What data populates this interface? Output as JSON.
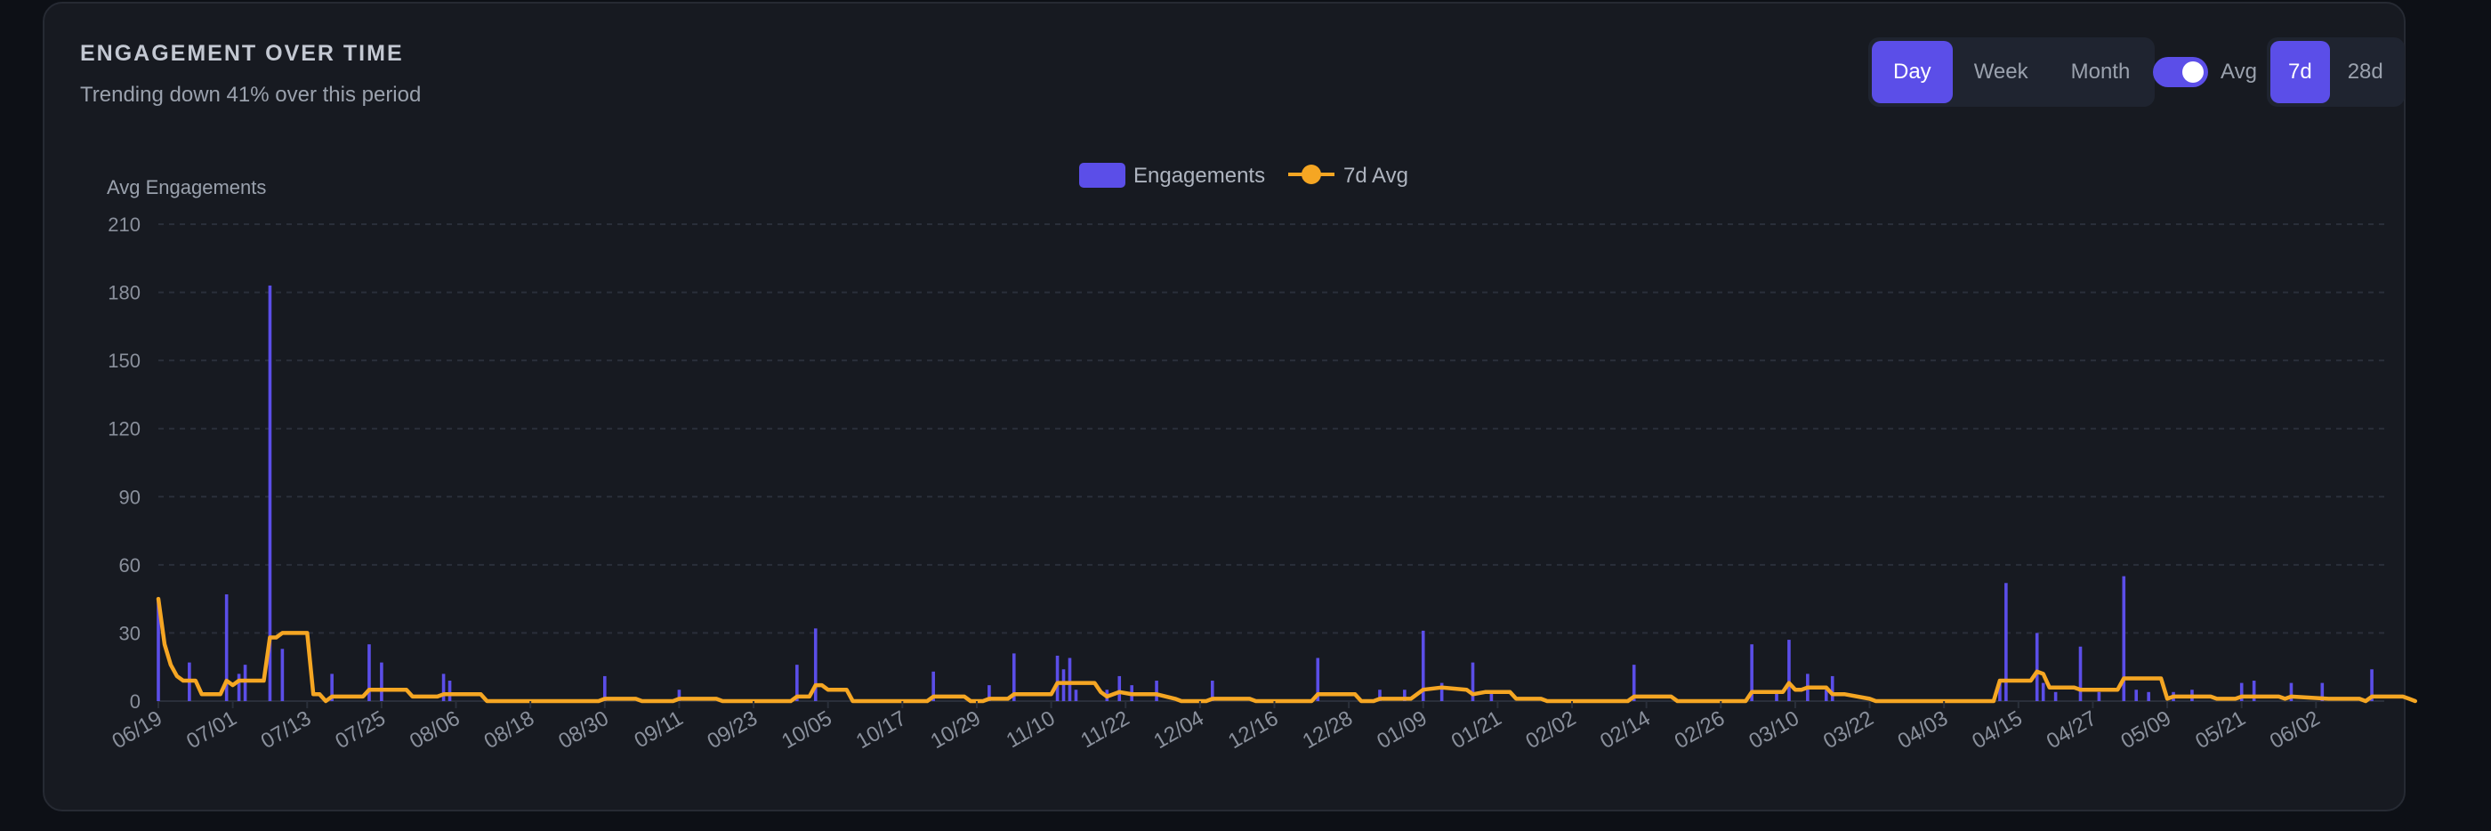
{
  "header": {
    "title": "ENGAGEMENT OVER TIME",
    "subtitle": "Trending down 41% over this period"
  },
  "controls": {
    "granularity": [
      {
        "label": "Day",
        "active": true
      },
      {
        "label": "Week",
        "active": false
      },
      {
        "label": "Month",
        "active": false
      }
    ],
    "avg_toggle_label": "Avg",
    "avg_toggle_on": true,
    "window": [
      {
        "label": "7d",
        "active": true
      },
      {
        "label": "28d",
        "active": false
      }
    ]
  },
  "colors": {
    "bar": "#5b4ee8",
    "line": "#f5a623",
    "grid": "#2a2f3a",
    "tick": "#8a909c",
    "accent": "#5b4ee8"
  },
  "chart_data": {
    "type": "bar",
    "ylabel": "Avg Engagements",
    "ylim": [
      0,
      210
    ],
    "yticks": [
      0,
      30,
      60,
      90,
      120,
      150,
      180,
      210
    ],
    "grid": true,
    "legend_position": "top-center",
    "x_start": "2024-06-19",
    "x_end": "2025-06-13",
    "xticks": [
      "06/19",
      "07/01",
      "07/13",
      "07/25",
      "08/06",
      "08/18",
      "08/30",
      "09/11",
      "09/23",
      "10/05",
      "10/17",
      "10/29",
      "11/10",
      "11/22",
      "12/04",
      "12/16",
      "12/28",
      "01/09",
      "01/21",
      "02/02",
      "02/14",
      "02/26",
      "03/10",
      "03/22",
      "04/03",
      "04/15",
      "04/27",
      "05/09",
      "05/21",
      "06/02"
    ],
    "series": [
      {
        "name": "Engagements",
        "type": "bar",
        "points": [
          [
            "2024-06-19",
            45
          ],
          [
            "2024-06-24",
            17
          ],
          [
            "2024-06-30",
            47
          ],
          [
            "2024-07-02",
            12
          ],
          [
            "2024-07-03",
            16
          ],
          [
            "2024-07-07",
            183
          ],
          [
            "2024-07-09",
            23
          ],
          [
            "2024-07-17",
            12
          ],
          [
            "2024-07-23",
            25
          ],
          [
            "2024-07-25",
            17
          ],
          [
            "2024-08-04",
            12
          ],
          [
            "2024-08-05",
            9
          ],
          [
            "2024-08-30",
            11
          ],
          [
            "2024-09-11",
            5
          ],
          [
            "2024-09-30",
            16
          ],
          [
            "2024-10-03",
            32
          ],
          [
            "2024-10-22",
            13
          ],
          [
            "2024-10-31",
            7
          ],
          [
            "2024-11-04",
            21
          ],
          [
            "2024-11-11",
            20
          ],
          [
            "2024-11-12",
            14
          ],
          [
            "2024-11-13",
            19
          ],
          [
            "2024-11-14",
            5
          ],
          [
            "2024-11-19",
            5
          ],
          [
            "2024-11-21",
            11
          ],
          [
            "2024-11-23",
            7
          ],
          [
            "2024-11-27",
            9
          ],
          [
            "2024-12-06",
            9
          ],
          [
            "2024-12-23",
            19
          ],
          [
            "2025-01-02",
            5
          ],
          [
            "2025-01-06",
            5
          ],
          [
            "2025-01-09",
            31
          ],
          [
            "2025-01-12",
            8
          ],
          [
            "2025-01-17",
            17
          ],
          [
            "2025-01-20",
            4
          ],
          [
            "2025-02-12",
            16
          ],
          [
            "2025-03-03",
            25
          ],
          [
            "2025-03-07",
            4
          ],
          [
            "2025-03-09",
            27
          ],
          [
            "2025-03-12",
            12
          ],
          [
            "2025-03-15",
            5
          ],
          [
            "2025-03-16",
            11
          ],
          [
            "2025-04-12",
            9
          ],
          [
            "2025-04-13",
            52
          ],
          [
            "2025-04-18",
            30
          ],
          [
            "2025-04-19",
            8
          ],
          [
            "2025-04-21",
            4
          ],
          [
            "2025-04-25",
            24
          ],
          [
            "2025-04-28",
            4
          ],
          [
            "2025-05-02",
            55
          ],
          [
            "2025-05-04",
            5
          ],
          [
            "2025-05-06",
            4
          ],
          [
            "2025-05-10",
            4
          ],
          [
            "2025-05-13",
            5
          ],
          [
            "2025-05-21",
            8
          ],
          [
            "2025-05-23",
            9
          ],
          [
            "2025-05-29",
            8
          ],
          [
            "2025-06-03",
            8
          ],
          [
            "2025-06-11",
            14
          ]
        ]
      },
      {
        "name": "7d Avg",
        "type": "line",
        "points": [
          [
            "2024-06-19",
            45
          ],
          [
            "2024-06-20",
            25
          ],
          [
            "2024-06-21",
            16
          ],
          [
            "2024-06-22",
            11
          ],
          [
            "2024-06-23",
            9
          ],
          [
            "2024-06-24",
            9
          ],
          [
            "2024-06-25",
            9
          ],
          [
            "2024-06-26",
            3
          ],
          [
            "2024-06-29",
            3
          ],
          [
            "2024-06-30",
            9
          ],
          [
            "2024-07-01",
            7
          ],
          [
            "2024-07-02",
            9
          ],
          [
            "2024-07-06",
            9
          ],
          [
            "2024-07-07",
            28
          ],
          [
            "2024-07-08",
            28
          ],
          [
            "2024-07-09",
            30
          ],
          [
            "2024-07-13",
            30
          ],
          [
            "2024-07-14",
            3
          ],
          [
            "2024-07-15",
            3
          ],
          [
            "2024-07-16",
            0
          ],
          [
            "2024-07-17",
            2
          ],
          [
            "2024-07-22",
            2
          ],
          [
            "2024-07-23",
            5
          ],
          [
            "2024-07-29",
            5
          ],
          [
            "2024-07-30",
            2
          ],
          [
            "2024-08-03",
            2
          ],
          [
            "2024-08-04",
            3
          ],
          [
            "2024-08-10",
            3
          ],
          [
            "2024-08-11",
            0
          ],
          [
            "2024-08-29",
            0
          ],
          [
            "2024-08-30",
            1
          ],
          [
            "2024-09-04",
            1
          ],
          [
            "2024-09-05",
            0
          ],
          [
            "2024-09-10",
            0
          ],
          [
            "2024-09-11",
            1
          ],
          [
            "2024-09-17",
            1
          ],
          [
            "2024-09-18",
            0
          ],
          [
            "2024-09-29",
            0
          ],
          [
            "2024-09-30",
            2
          ],
          [
            "2024-10-02",
            2
          ],
          [
            "2024-10-03",
            7
          ],
          [
            "2024-10-04",
            7
          ],
          [
            "2024-10-05",
            5
          ],
          [
            "2024-10-08",
            5
          ],
          [
            "2024-10-09",
            0
          ],
          [
            "2024-10-21",
            0
          ],
          [
            "2024-10-22",
            2
          ],
          [
            "2024-10-27",
            2
          ],
          [
            "2024-10-28",
            0
          ],
          [
            "2024-10-30",
            0
          ],
          [
            "2024-10-31",
            1
          ],
          [
            "2024-11-03",
            1
          ],
          [
            "2024-11-04",
            3
          ],
          [
            "2024-11-10",
            3
          ],
          [
            "2024-11-11",
            8
          ],
          [
            "2024-11-12",
            8
          ],
          [
            "2024-11-13",
            8
          ],
          [
            "2024-11-17",
            8
          ],
          [
            "2024-11-18",
            4
          ],
          [
            "2024-11-19",
            2
          ],
          [
            "2024-11-21",
            4
          ],
          [
            "2024-11-23",
            3
          ],
          [
            "2024-11-27",
            3
          ],
          [
            "2024-11-30",
            1
          ],
          [
            "2024-12-01",
            0
          ],
          [
            "2024-12-05",
            0
          ],
          [
            "2024-12-06",
            1
          ],
          [
            "2024-12-12",
            1
          ],
          [
            "2024-12-13",
            0
          ],
          [
            "2024-12-22",
            0
          ],
          [
            "2024-12-23",
            3
          ],
          [
            "2024-12-29",
            3
          ],
          [
            "2024-12-30",
            0
          ],
          [
            "2025-01-01",
            0
          ],
          [
            "2025-01-02",
            1
          ],
          [
            "2025-01-07",
            1
          ],
          [
            "2025-01-09",
            5
          ],
          [
            "2025-01-12",
            6
          ],
          [
            "2025-01-16",
            5
          ],
          [
            "2025-01-17",
            3
          ],
          [
            "2025-01-19",
            4
          ],
          [
            "2025-01-23",
            4
          ],
          [
            "2025-01-24",
            1
          ],
          [
            "2025-01-28",
            1
          ],
          [
            "2025-01-29",
            0
          ],
          [
            "2025-02-11",
            0
          ],
          [
            "2025-02-12",
            2
          ],
          [
            "2025-02-18",
            2
          ],
          [
            "2025-02-19",
            0
          ],
          [
            "2025-03-02",
            0
          ],
          [
            "2025-03-03",
            4
          ],
          [
            "2025-03-08",
            4
          ],
          [
            "2025-03-09",
            8
          ],
          [
            "2025-03-10",
            5
          ],
          [
            "2025-03-11",
            5
          ],
          [
            "2025-03-12",
            6
          ],
          [
            "2025-03-15",
            6
          ],
          [
            "2025-03-16",
            3
          ],
          [
            "2025-03-18",
            3
          ],
          [
            "2025-03-22",
            1
          ],
          [
            "2025-03-23",
            0
          ],
          [
            "2025-04-11",
            0
          ],
          [
            "2025-04-12",
            9
          ],
          [
            "2025-04-17",
            9
          ],
          [
            "2025-04-18",
            13
          ],
          [
            "2025-04-19",
            12
          ],
          [
            "2025-04-20",
            6
          ],
          [
            "2025-04-24",
            6
          ],
          [
            "2025-04-25",
            5
          ],
          [
            "2025-05-01",
            5
          ],
          [
            "2025-05-02",
            10
          ],
          [
            "2025-05-08",
            10
          ],
          [
            "2025-05-09",
            1
          ],
          [
            "2025-05-10",
            2
          ],
          [
            "2025-05-16",
            2
          ],
          [
            "2025-05-17",
            1
          ],
          [
            "2025-05-20",
            1
          ],
          [
            "2025-05-21",
            2
          ],
          [
            "2025-05-27",
            2
          ],
          [
            "2025-05-28",
            1
          ],
          [
            "2025-05-29",
            2
          ],
          [
            "2025-06-04",
            1
          ],
          [
            "2025-06-09",
            1
          ],
          [
            "2025-06-10",
            0
          ],
          [
            "2025-06-11",
            2
          ],
          [
            "2025-06-16",
            2
          ],
          [
            "2025-06-17",
            1
          ],
          [
            "2025-06-18",
            0
          ]
        ]
      }
    ]
  }
}
